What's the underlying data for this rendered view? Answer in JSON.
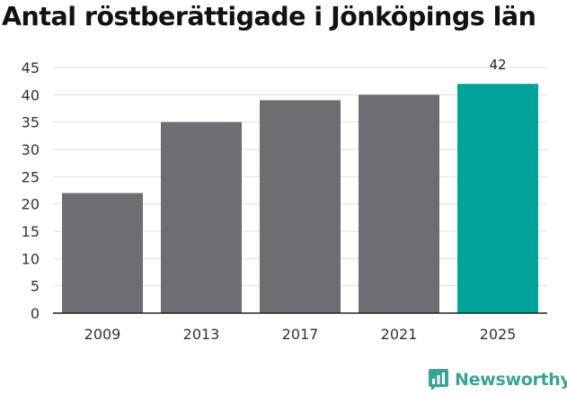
{
  "chart_data": {
    "type": "bar",
    "title": "Antal röstberättigade i Jönköpings län",
    "categories": [
      "2009",
      "2013",
      "2017",
      "2021",
      "2025"
    ],
    "values": [
      22,
      35,
      39,
      40,
      42
    ],
    "data_labels": [
      null,
      null,
      null,
      null,
      "42"
    ],
    "ylim": [
      0,
      45
    ],
    "yticks": [
      0,
      5,
      10,
      15,
      20,
      25,
      30,
      35,
      40,
      45
    ],
    "grid": true,
    "colors": {
      "default": "#6e6d72",
      "highlight": "#00a39a",
      "grid": "#dddddd",
      "axis": "#222222"
    },
    "highlight_index": 4
  },
  "branding": {
    "logo_text": "Newsworthy",
    "color": "#3aa394"
  }
}
